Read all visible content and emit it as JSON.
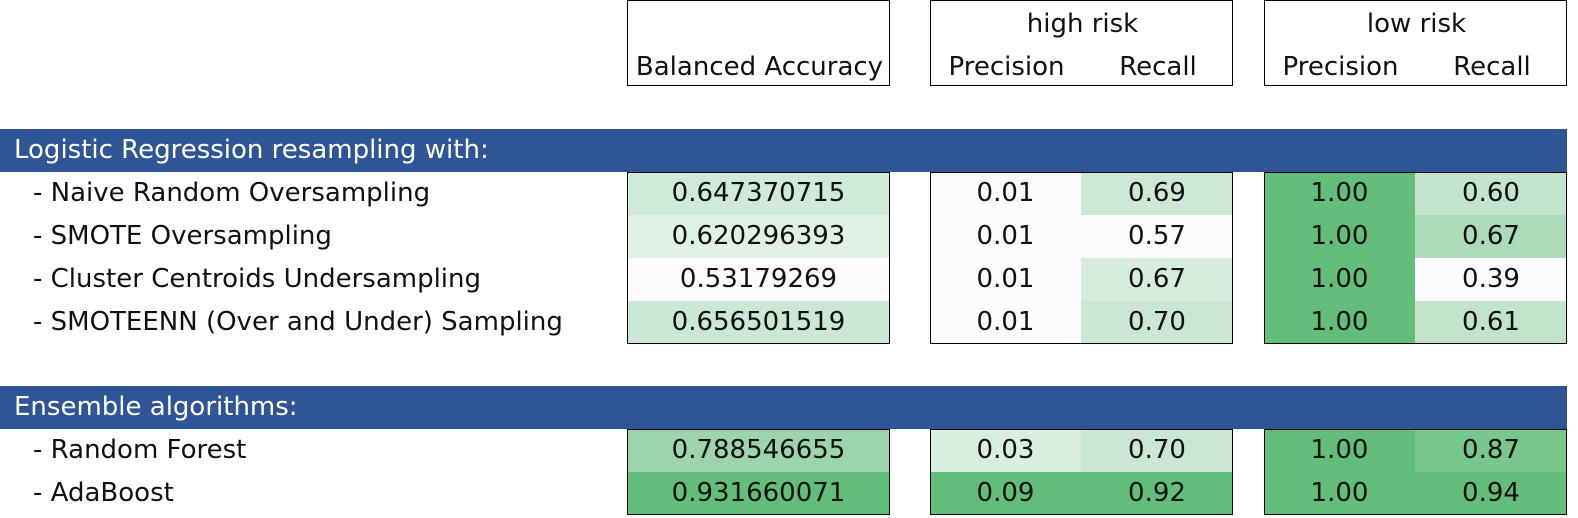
{
  "header": {
    "balanced_accuracy": "Balanced Accuracy",
    "high_risk": "high risk",
    "low_risk": "low risk",
    "precision": "Precision",
    "recall": "Recall"
  },
  "sections": [
    {
      "title": "Logistic Regression resampling with:",
      "rows": [
        {
          "label": "- Naive Random Oversampling",
          "ba": "0.647370715",
          "hp": "0.01",
          "hr": "0.69",
          "lp": "1.00",
          "lr": "0.60"
        },
        {
          "label": "- SMOTE Oversampling",
          "ba": "0.620296393",
          "hp": "0.01",
          "hr": "0.57",
          "lp": "1.00",
          "lr": "0.67"
        },
        {
          "label": "- Cluster Centroids Undersampling",
          "ba": "0.53179269",
          "hp": "0.01",
          "hr": "0.67",
          "lp": "1.00",
          "lr": "0.39"
        },
        {
          "label": "- SMOTEENN (Over and Under) Sampling",
          "ba": "0.656501519",
          "hp": "0.01",
          "hr": "0.70",
          "lp": "1.00",
          "lr": "0.61"
        }
      ]
    },
    {
      "title": "Ensemble algorithms:",
      "rows": [
        {
          "label": "- Random Forest",
          "ba": "0.788546655",
          "hp": "0.03",
          "hr": "0.70",
          "lp": "1.00",
          "lr": "0.87"
        },
        {
          "label": "- AdaBoost",
          "ba": "0.931660071",
          "hp": "0.09",
          "hr": "0.92",
          "lp": "1.00",
          "lr": "0.94"
        }
      ]
    }
  ],
  "colors": {
    "band": "#2f5597",
    "scale_low": "#fcfcff",
    "scale_high": "#63be7b"
  }
}
